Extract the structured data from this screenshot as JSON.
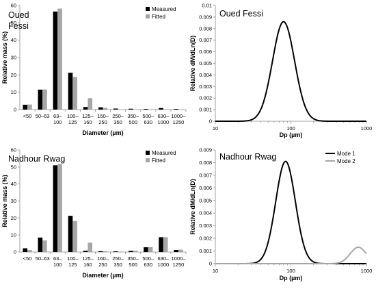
{
  "chart_data": [
    {
      "type": "bar",
      "panel_title": [
        "Oued",
        "Fessi"
      ],
      "xlabel": "Diameter (µm)",
      "ylabel": "Relative mass (%)",
      "ylim": [
        0,
        60
      ],
      "yticks": [
        0,
        10,
        20,
        30,
        40,
        50,
        60
      ],
      "categories": [
        [
          "<50"
        ],
        [
          "50–63"
        ],
        [
          "63–",
          "100"
        ],
        [
          "100–",
          "125"
        ],
        [
          "125–",
          "160"
        ],
        [
          "160–",
          "250"
        ],
        [
          "250–",
          "350"
        ],
        [
          "350–",
          "500"
        ],
        [
          "500–",
          "630"
        ],
        [
          "630–",
          "1000"
        ],
        [
          "1000–",
          "1250"
        ]
      ],
      "series": [
        {
          "name": "Measured",
          "color": "#000000",
          "values": [
            2.8,
            11.5,
            56.5,
            21.2,
            1.5,
            1.3,
            0.6,
            0.5,
            0.4,
            0.9,
            0.4
          ]
        },
        {
          "name": "Fitted",
          "color": "#a6a6a6",
          "values": [
            2.9,
            11.6,
            58.2,
            18.8,
            6.6,
            1.0,
            0.2,
            0.1,
            0.1,
            0.1,
            0.1
          ]
        }
      ]
    },
    {
      "type": "line",
      "panel_title": [
        "Oued Fessi"
      ],
      "xlabel": "Dp (µm)",
      "ylabel": "Relative dM/dLn(D)",
      "xscale": "log",
      "xlim": [
        10,
        1000
      ],
      "xticks": [
        10,
        100,
        1000
      ],
      "ylim": [
        0,
        0.01
      ],
      "yticks": [
        "0",
        "0.001",
        "0.002",
        "0.003",
        "0.004",
        "0.005",
        "0.006",
        "0.007",
        "0.008",
        "0.009",
        "0.01"
      ],
      "series": [
        {
          "color": "#000000",
          "peak": 0.0086,
          "median": 80,
          "gsd": 1.4
        }
      ]
    },
    {
      "type": "bar",
      "panel_title": [
        "Nadhour Rwag"
      ],
      "xlabel": "Diameter (µm)",
      "ylabel": "Relative mass (%)",
      "ylim": [
        0,
        60
      ],
      "yticks": [
        0,
        10,
        20,
        30,
        40,
        50,
        60
      ],
      "categories": [
        [
          "<50"
        ],
        [
          "50–63"
        ],
        [
          "63–",
          "100"
        ],
        [
          "100–",
          "125"
        ],
        [
          "125–",
          "160"
        ],
        [
          "160–",
          "250"
        ],
        [
          "250–",
          "350"
        ],
        [
          "350–",
          "500"
        ],
        [
          "500–",
          "630"
        ],
        [
          "630–",
          "1000"
        ],
        [
          "1000–",
          "1250"
        ]
      ],
      "series": [
        {
          "name": "Measured",
          "color": "#000000",
          "values": [
            2.2,
            8.5,
            51.0,
            21.3,
            0.8,
            0.5,
            0.4,
            0.7,
            2.8,
            8.7,
            1.2
          ]
        },
        {
          "name": "Fitted",
          "color": "#a6a6a6",
          "values": [
            1.2,
            6.8,
            51.8,
            18.2,
            5.5,
            0.5,
            0.3,
            0.8,
            2.9,
            8.7,
            1.4
          ]
        }
      ]
    },
    {
      "type": "line",
      "panel_title": [
        "Nadhour Rwag"
      ],
      "xlabel": "Dp (µm)",
      "ylabel": "Relative dM/dLn(D)",
      "xscale": "log",
      "xlim": [
        10,
        1000
      ],
      "xticks": [
        10,
        100,
        1000
      ],
      "ylim": [
        0,
        0.009
      ],
      "yticks": [
        "0",
        "0.001",
        "0.002",
        "0.003",
        "0.004",
        "0.005",
        "0.006",
        "0.007",
        "0.008",
        "0.009"
      ],
      "series": [
        {
          "name": "Mode 1",
          "color": "#000000",
          "peak": 0.0081,
          "median": 85,
          "gsd": 1.35
        },
        {
          "name": "Mode 2",
          "color": "#a6a6a6",
          "peak": 0.0013,
          "median": 780,
          "gsd": 1.28
        }
      ]
    }
  ]
}
